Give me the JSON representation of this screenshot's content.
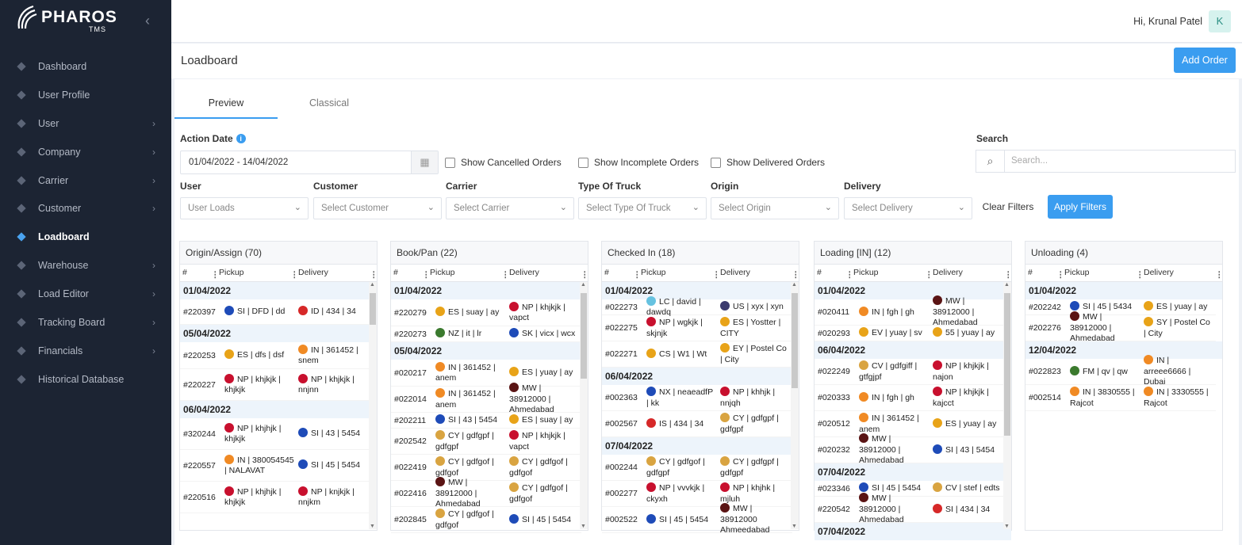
{
  "brand": {
    "name": "PHAROS",
    "sub": "TMS"
  },
  "sidebar": {
    "items": [
      {
        "label": "Dashboard",
        "icon": "dashboard-icon",
        "chev": false
      },
      {
        "label": "User Profile",
        "icon": "user-profile-icon",
        "chev": false
      },
      {
        "label": "User",
        "icon": "user-icon",
        "chev": true
      },
      {
        "label": "Company",
        "icon": "company-icon",
        "chev": true
      },
      {
        "label": "Carrier",
        "icon": "carrier-icon",
        "chev": true
      },
      {
        "label": "Customer",
        "icon": "customer-icon",
        "chev": true
      },
      {
        "label": "Loadboard",
        "icon": "loadboard-icon",
        "chev": false,
        "active": true
      },
      {
        "label": "Warehouse",
        "icon": "warehouse-icon",
        "chev": true
      },
      {
        "label": "Load Editor",
        "icon": "load-editor-icon",
        "chev": true
      },
      {
        "label": "Tracking Board",
        "icon": "tracking-board-icon",
        "chev": true
      },
      {
        "label": "Financials",
        "icon": "financials-icon",
        "chev": true
      },
      {
        "label": "Historical Database",
        "icon": "historical-database-icon",
        "chev": false
      }
    ]
  },
  "header": {
    "greeting": "Hi, Krunal Patel",
    "avatar": "K"
  },
  "page": {
    "title": "Loadboard",
    "add_order": "Add Order"
  },
  "tabs": [
    "Preview",
    "Classical"
  ],
  "filters": {
    "action_date_label": "Action Date",
    "date_range": "01/04/2022 - 14/04/2022",
    "show_cancelled": "Show Cancelled Orders",
    "show_incomplete": "Show Incomplete Orders",
    "show_delivered": "Show Delivered Orders",
    "search_label": "Search",
    "search_placeholder": "Search...",
    "user_label": "User",
    "user_value": "User Loads",
    "customer_label": "Customer",
    "customer_value": "Select Customer",
    "carrier_label": "Carrier",
    "carrier_value": "Select Carrier",
    "truck_label": "Type Of Truck",
    "truck_value": "Select Type Of Truck",
    "origin_label": "Origin",
    "origin_value": "Select Origin",
    "delivery_label": "Delivery",
    "delivery_value": "Select Delivery",
    "clear": "Clear Filters",
    "apply": "Apply Filters"
  },
  "grid_headers": {
    "num": "#",
    "pickup": "Pickup",
    "delivery": "Delivery"
  },
  "columns": [
    {
      "title": "Origin/Assign (70)",
      "thumb": [
        14,
        40
      ],
      "items": [
        {
          "date": "01/04/2022"
        },
        {
          "id": "#220397",
          "p": "SI | DFD | dd",
          "pc": "#1e4bb8",
          "d": "ID | 434 | 34",
          "dc": "#d62828",
          "h": 32
        },
        {
          "date": "05/04/2022"
        },
        {
          "id": "#220253",
          "p": "ES | dfs | dsf",
          "pc": "#e8a318",
          "d": "IN | 361452 | snem",
          "dc": "#f08a24",
          "h": 34
        },
        {
          "id": "#220227",
          "p": "NP | khjkjk | khjkjk",
          "pc": "#c8102e",
          "d": "NP | khjkjk | nnjnn",
          "dc": "#c8102e",
          "h": 40
        },
        {
          "date": "06/04/2022"
        },
        {
          "id": "#320244",
          "p": "NP | khjhjk | khjkjk",
          "pc": "#c8102e",
          "d": "SI | 43 | 5454",
          "dc": "#1e4bb8",
          "h": 40
        },
        {
          "id": "#220557",
          "p": "IN | 380054545 | NALAVAT",
          "pc": "#f08a24",
          "d": "SI | 45 | 5454",
          "dc": "#1e4bb8",
          "h": 40
        },
        {
          "id": "#220516",
          "p": "NP | khjhjk | khjkjk",
          "pc": "#c8102e",
          "d": "NP | knjkjk | nnjkm",
          "dc": "#c8102e",
          "h": 40
        }
      ]
    },
    {
      "title": "Book/Pan (22)",
      "thumb": [
        14,
        108
      ],
      "items": [
        {
          "date": "01/04/2022"
        },
        {
          "id": "#220279",
          "p": "ES | suay | ay",
          "pc": "#e8a318",
          "d": "NP | khjkjk | vapct",
          "dc": "#c8102e",
          "h": 34
        },
        {
          "id": "#220273",
          "p": "NZ | it | lr",
          "pc": "#3b7a2e",
          "d": "SK | vicx | wcx",
          "dc": "#1e4bb8",
          "h": 20
        },
        {
          "date": "05/04/2022"
        },
        {
          "id": "#020217",
          "p": "IN | 361452 | anem",
          "pc": "#f08a24",
          "d": "ES | yuay | ay",
          "dc": "#e8a318",
          "h": 34
        },
        {
          "id": "#022014",
          "p": "IN | 361452 | anem",
          "pc": "#f08a24",
          "d": "MW | 38912000 | Ahmedabad",
          "dc": "#5a1414",
          "h": 33
        },
        {
          "id": "#202211",
          "p": "SI | 43 | 5454",
          "pc": "#1e4bb8",
          "d": "ES | suay | ay",
          "dc": "#e8a318",
          "h": 20
        },
        {
          "id": "#202542",
          "p": "CY | gdfgpf | gdfgpf",
          "pc": "#d9a441",
          "d": "NP | khjkjk | vapct",
          "dc": "#c8102e",
          "h": 33
        },
        {
          "id": "#022419",
          "p": "CY | gdfgof | gdfgof",
          "pc": "#d9a441",
          "d": "CY | gdfgof | gdfgof",
          "dc": "#d9a441",
          "h": 33
        },
        {
          "id": "#022416",
          "p": "MW | 38912000 | Ahmedabad",
          "pc": "#5a1414",
          "d": "CY | gdfgof | gdfgof",
          "dc": "#d9a441",
          "h": 33
        },
        {
          "id": "#202845",
          "p": "CY | gdfgof | gdfgof",
          "pc": "#d9a441",
          "d": "SI | 45 | 5454",
          "dc": "#1e4bb8",
          "h": 33
        }
      ]
    },
    {
      "title": "Checked In (18)",
      "thumb": [
        14,
        120
      ],
      "items": [
        {
          "date": "01/04/2022"
        },
        {
          "id": "#022273",
          "p": "LC | david | dawdq",
          "pc": "#66c2e0",
          "d": "US | xyx | xyn",
          "dc": "#3c3b6e",
          "h": 20
        },
        {
          "id": "#022275",
          "p": "NP | wgkjk | skjnjk",
          "pc": "#c8102e",
          "d": "ES | Yostter | CITY",
          "dc": "#e8a318",
          "h": 33
        },
        {
          "id": "#022271",
          "p": "CS | W1 | Wt",
          "pc": "#e8a318",
          "d": "EY | Postel Co | City",
          "dc": "#e8a318",
          "h": 33
        },
        {
          "date": "06/04/2022"
        },
        {
          "id": "#002363",
          "p": "NX | neaeadfP | kk",
          "pc": "#1e4bb8",
          "d": "NP | khhjk | nnjqh",
          "dc": "#c8102e",
          "h": 33
        },
        {
          "id": "#002567",
          "p": "IS | 434 | 34",
          "pc": "#d62828",
          "d": "CY | gdfgpf | gdfgpf",
          "dc": "#d9a441",
          "h": 33
        },
        {
          "date": "07/04/2022"
        },
        {
          "id": "#002244",
          "p": "CY | gdfgof | gdfgpf",
          "pc": "#d9a441",
          "d": "CY | gdfgpf | gdfgpf",
          "dc": "#d9a441",
          "h": 33
        },
        {
          "id": "#002277",
          "p": "NP | vvvkjk | ckyxh",
          "pc": "#c8102e",
          "d": "NP | khjhk | mjluh",
          "dc": "#c8102e",
          "h": 33
        },
        {
          "id": "#002522",
          "p": "SI | 45 | 5454",
          "pc": "#1e4bb8",
          "d": "MW | 38912000 Ahmeedabad",
          "dc": "#5a1414",
          "h": 33
        }
      ]
    },
    {
      "title": "Loading [IN] (12)",
      "thumb": [
        14,
        180
      ],
      "items": [
        {
          "date": "01/04/2022"
        },
        {
          "id": "#020411",
          "p": "IN | fgh | gh",
          "pc": "#f08a24",
          "d": "MW | 38912000 | Ahmedabad",
          "dc": "#5a1414",
          "h": 33
        },
        {
          "id": "#020293",
          "p": "EV | yuay | sv",
          "pc": "#e8a318",
          "d": "55 | yuay | ay",
          "dc": "#e8a318",
          "h": 20
        },
        {
          "date": "06/04/2022"
        },
        {
          "id": "#022249",
          "p": "CV | gdfgiff | gtfgjpf",
          "pc": "#d9a441",
          "d": "NP | khjkjk | najon",
          "dc": "#c8102e",
          "h": 33
        },
        {
          "id": "#020333",
          "p": "IN | fgh | gh",
          "pc": "#f08a24",
          "d": "NP | khjkjk | kajcct",
          "dc": "#c8102e",
          "h": 33
        },
        {
          "id": "#020512",
          "p": "IN | 361452 | anem",
          "pc": "#f08a24",
          "d": "ES | yuay | ay",
          "dc": "#e8a318",
          "h": 33
        },
        {
          "id": "#020232",
          "p": "MW | 38912000 | Ahmedabad",
          "pc": "#5a1414",
          "d": "SI | 43 | 5454",
          "dc": "#1e4bb8",
          "h": 33
        },
        {
          "date": "07/04/2022"
        },
        {
          "id": "#023346",
          "p": "SI | 45 | 5454",
          "pc": "#1e4bb8",
          "d": "CV | stef | edts",
          "dc": "#d9a441",
          "h": 20
        },
        {
          "id": "#220542",
          "p": "MW | 38912000 | Ahmedabad",
          "pc": "#5a1414",
          "d": "SI | 434 | 34",
          "dc": "#d62828",
          "h": 33
        },
        {
          "date": "07/04/2022"
        }
      ]
    },
    {
      "title": "Unloading (4)",
      "thumb": null,
      "items": [
        {
          "date": "01/04/2022"
        },
        {
          "id": "#202242",
          "p": "SI | 45 | 5434",
          "pc": "#1e4bb8",
          "d": "ES | yuay | ay",
          "dc": "#e8a318",
          "h": 20
        },
        {
          "id": "#202276",
          "p": "MW | 38912000 | Ahmedabad",
          "pc": "#5a1414",
          "d": "SY | Postel Co | City",
          "dc": "#e8a318",
          "h": 33
        },
        {
          "date": "12/04/2022"
        },
        {
          "id": "#022823",
          "p": "FM | qv | qw",
          "pc": "#3b7a2e",
          "d": "IN | arreee6666 | Dubai",
          "dc": "#f08a24",
          "h": 33
        },
        {
          "id": "#002514",
          "p": "IN | 3830555 | Rajcot",
          "pc": "#f08a24",
          "d": "IN | 3330555 | Rajcot",
          "dc": "#f08a24",
          "h": 33
        }
      ]
    }
  ]
}
